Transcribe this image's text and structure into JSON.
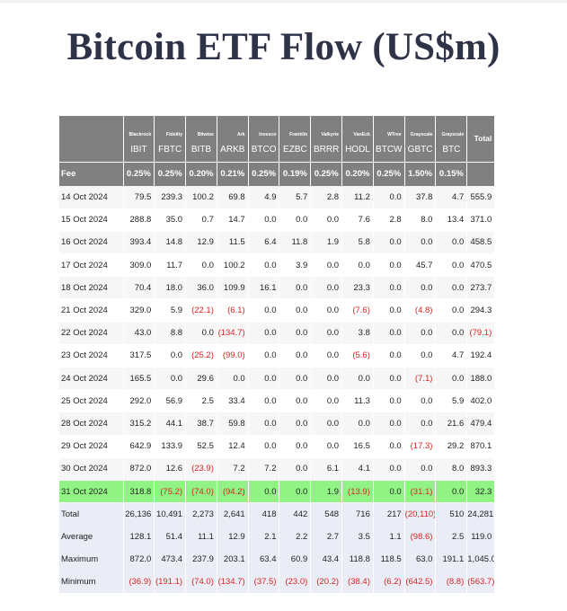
{
  "title": "Bitcoin ETF Flow (US$m)",
  "columns": [
    {
      "issuer": "Blackrock",
      "ticker": "IBIT",
      "fee": "0.25%"
    },
    {
      "issuer": "Fidelity",
      "ticker": "FBTC",
      "fee": "0.25%"
    },
    {
      "issuer": "Bitwise",
      "ticker": "BITB",
      "fee": "0.20%"
    },
    {
      "issuer": "Ark",
      "ticker": "ARKB",
      "fee": "0.21%"
    },
    {
      "issuer": "Invesco",
      "ticker": "BTCO",
      "fee": "0.25%"
    },
    {
      "issuer": "Franklin",
      "ticker": "EZBC",
      "fee": "0.19%"
    },
    {
      "issuer": "Valkyrie",
      "ticker": "BRRR",
      "fee": "0.25%"
    },
    {
      "issuer": "VanEck",
      "ticker": "HODL",
      "fee": "0.20%"
    },
    {
      "issuer": "WTree",
      "ticker": "BTCW",
      "fee": "0.25%"
    },
    {
      "issuer": "Grayscale",
      "ticker": "GBTC",
      "fee": "1.50%"
    },
    {
      "issuer": "Grayscale",
      "ticker": "BTC",
      "fee": "0.15%"
    }
  ],
  "total_header": "Total",
  "fee_label": "Fee",
  "rows": [
    {
      "date": "14 Oct 2024",
      "values": [
        "79.5",
        "239.3",
        "100.2",
        "69.8",
        "4.9",
        "5.7",
        "2.8",
        "11.2",
        "0.0",
        "37.8",
        "4.7",
        "555.9"
      ]
    },
    {
      "date": "15 Oct 2024",
      "values": [
        "288.8",
        "35.0",
        "0.7",
        "14.7",
        "0.0",
        "0.0",
        "0.0",
        "7.6",
        "2.8",
        "8.0",
        "13.4",
        "371.0"
      ]
    },
    {
      "date": "16 Oct 2024",
      "values": [
        "393.4",
        "14.8",
        "12.9",
        "11.5",
        "6.4",
        "11.8",
        "1.9",
        "5.8",
        "0.0",
        "0.0",
        "0.0",
        "458.5"
      ]
    },
    {
      "date": "17 Oct 2024",
      "values": [
        "309.0",
        "11.7",
        "0.0",
        "100.2",
        "0.0",
        "3.9",
        "0.0",
        "0.0",
        "0.0",
        "45.7",
        "0.0",
        "470.5"
      ]
    },
    {
      "date": "18 Oct 2024",
      "values": [
        "70.4",
        "18.0",
        "36.0",
        "109.9",
        "16.1",
        "0.0",
        "0.0",
        "23.3",
        "0.0",
        "0.0",
        "0.0",
        "273.7"
      ]
    },
    {
      "date": "21 Oct 2024",
      "values": [
        "329.0",
        "5.9",
        "(22.1)",
        "(6.1)",
        "0.0",
        "0.0",
        "0.0",
        "(7.6)",
        "0.0",
        "(4.8)",
        "0.0",
        "294.3"
      ]
    },
    {
      "date": "22 Oct 2024",
      "values": [
        "43.0",
        "8.8",
        "0.0",
        "(134.7)",
        "0.0",
        "0.0",
        "0.0",
        "3.8",
        "0.0",
        "0.0",
        "0.0",
        "(79.1)"
      ]
    },
    {
      "date": "23 Oct 2024",
      "values": [
        "317.5",
        "0.0",
        "(25.2)",
        "(99.0)",
        "0.0",
        "0.0",
        "0.0",
        "(5.6)",
        "0.0",
        "0.0",
        "4.7",
        "192.4"
      ]
    },
    {
      "date": "24 Oct 2024",
      "values": [
        "165.5",
        "0.0",
        "29.6",
        "0.0",
        "0.0",
        "0.0",
        "0.0",
        "0.0",
        "0.0",
        "(7.1)",
        "0.0",
        "188.0"
      ]
    },
    {
      "date": "25 Oct 2024",
      "values": [
        "292.0",
        "56.9",
        "2.5",
        "33.4",
        "0.0",
        "0.0",
        "0.0",
        "11.3",
        "0.0",
        "0.0",
        "5.9",
        "402.0"
      ]
    },
    {
      "date": "28 Oct 2024",
      "values": [
        "315.2",
        "44.1",
        "38.7",
        "59.8",
        "0.0",
        "0.0",
        "0.0",
        "0.0",
        "0.0",
        "0.0",
        "21.6",
        "479.4"
      ]
    },
    {
      "date": "29 Oct 2024",
      "values": [
        "642.9",
        "133.9",
        "52.5",
        "12.4",
        "0.0",
        "0.0",
        "0.0",
        "16.5",
        "0.0",
        "(17.3)",
        "29.2",
        "870.1"
      ]
    },
    {
      "date": "30 Oct 2024",
      "values": [
        "872.0",
        "12.6",
        "(23.9)",
        "7.2",
        "7.2",
        "0.0",
        "6.1",
        "4.1",
        "0.0",
        "0.0",
        "8.0",
        "893.3"
      ]
    },
    {
      "date": "31 Oct 2024",
      "highlight": true,
      "values": [
        "318.8",
        "(75.2)",
        "(74.0)",
        "(94.2)",
        "0.0",
        "0.0",
        "1.9",
        "(13.9)",
        "0.0",
        "(31.1)",
        "0.0",
        "32.3"
      ]
    }
  ],
  "summary": [
    {
      "label": "Total",
      "values": [
        "26,136",
        "10,491",
        "2,273",
        "2,641",
        "418",
        "442",
        "548",
        "716",
        "217",
        "(20,110)",
        "510",
        "24,281"
      ]
    },
    {
      "label": "Average",
      "values": [
        "128.1",
        "51.4",
        "11.1",
        "12.9",
        "2.1",
        "2.2",
        "2.7",
        "3.5",
        "1.1",
        "(98.6)",
        "2.5",
        "119.0"
      ]
    },
    {
      "label": "Maximum",
      "values": [
        "872.0",
        "473.4",
        "237.9",
        "203.1",
        "63.4",
        "60.9",
        "43.4",
        "118.8",
        "118.5",
        "63.0",
        "191.1",
        "1,045.0"
      ]
    },
    {
      "label": "Minimum",
      "values": [
        "(36.9)",
        "(191.1)",
        "(74.0)",
        "(134.7)",
        "(37.5)",
        "(23.0)",
        "(20.2)",
        "(38.4)",
        "(6.2)",
        "(642.5)",
        "(8.8)",
        "(563.7)"
      ]
    }
  ],
  "colors": {
    "header_bg": "#808080",
    "highlight_bg": "#91f383",
    "negative": "#dd2222",
    "summary_bg": "#eaedf6"
  }
}
